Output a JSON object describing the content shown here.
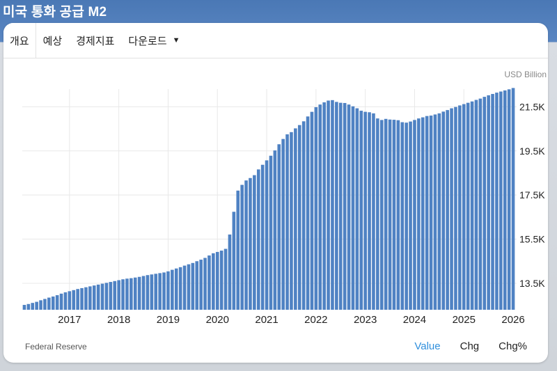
{
  "title": "미국 통화 공급 M2",
  "tabs": [
    {
      "label": "개요",
      "active": true
    },
    {
      "label": "예상",
      "active": false
    },
    {
      "label": "경제지표",
      "active": false
    },
    {
      "label": "다운로드",
      "active": false,
      "dropdown": true
    }
  ],
  "source": "Federal Reserve",
  "modes": [
    {
      "label": "Value",
      "active": true
    },
    {
      "label": "Chg",
      "active": false
    },
    {
      "label": "Chg%",
      "active": false
    }
  ],
  "colors": {
    "bar": "#4f82c3",
    "grid": "#e8e8e8",
    "active_mode": "#2f8fdc",
    "header": "#4a78b5"
  },
  "chart_data": {
    "type": "bar",
    "unit_label": "USD Billion",
    "ylim": [
      12300,
      22300
    ],
    "y_ticks": [
      13500,
      15500,
      17500,
      19500,
      21500
    ],
    "y_tick_labels": [
      "13.5K",
      "15.5K",
      "17.5K",
      "19.5K",
      "21.5K"
    ],
    "x_tick_labels": [
      "2017",
      "2018",
      "2019",
      "2020",
      "2021",
      "2022",
      "2023",
      "2024",
      "2025",
      "2026"
    ],
    "x_tick_index": [
      11,
      23,
      35,
      47,
      59,
      71,
      83,
      95,
      107,
      119
    ],
    "grid": true,
    "values": [
      12520,
      12560,
      12610,
      12660,
      12730,
      12790,
      12850,
      12900,
      12960,
      13030,
      13090,
      13140,
      13190,
      13240,
      13280,
      13320,
      13360,
      13400,
      13440,
      13480,
      13520,
      13560,
      13600,
      13640,
      13680,
      13710,
      13730,
      13760,
      13790,
      13830,
      13870,
      13900,
      13930,
      13960,
      13990,
      14040,
      14110,
      14170,
      14230,
      14300,
      14360,
      14420,
      14500,
      14570,
      14650,
      14760,
      14860,
      14920,
      14980,
      15060,
      15710,
      16740,
      17700,
      17960,
      18160,
      18270,
      18400,
      18660,
      18870,
      19070,
      19280,
      19520,
      19800,
      20040,
      20250,
      20350,
      20520,
      20670,
      20840,
      21060,
      21270,
      21480,
      21600,
      21700,
      21780,
      21800,
      21720,
      21680,
      21670,
      21600,
      21520,
      21430,
      21320,
      21270,
      21250,
      21200,
      20970,
      20900,
      20950,
      20920,
      20910,
      20890,
      20800,
      20780,
      20830,
      20900,
      20970,
      21020,
      21080,
      21100,
      21150,
      21200,
      21280,
      21350,
      21430,
      21490,
      21560,
      21620,
      21680,
      21740,
      21810,
      21870,
      21950,
      22020,
      22080,
      22140,
      22190,
      22240,
      22290,
      22350
    ]
  }
}
